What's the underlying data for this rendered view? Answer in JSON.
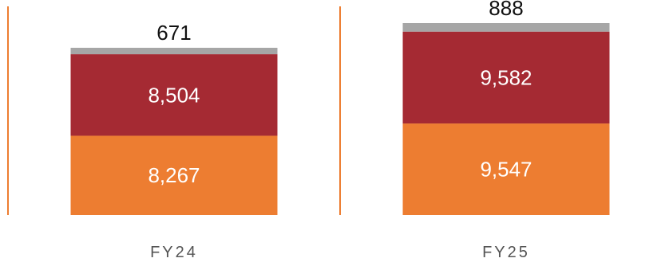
{
  "chart_data": {
    "type": "bar",
    "stacked": true,
    "categories": [
      "FY24",
      "FY25"
    ],
    "series": [
      {
        "values": [
          8267,
          9547
        ],
        "color": "#ED7D31",
        "labels": [
          "8,267",
          "9,547"
        ]
      },
      {
        "values": [
          8504,
          9582
        ],
        "color": "#A52A33",
        "labels": [
          "8,504",
          "9,582"
        ]
      },
      {
        "values": [
          671,
          888
        ],
        "color": "#A6A6A6",
        "labels": [
          "671",
          "888"
        ]
      }
    ],
    "ylim": [
      0,
      21000
    ],
    "grid": false,
    "separator_color": "#ED7D31"
  }
}
